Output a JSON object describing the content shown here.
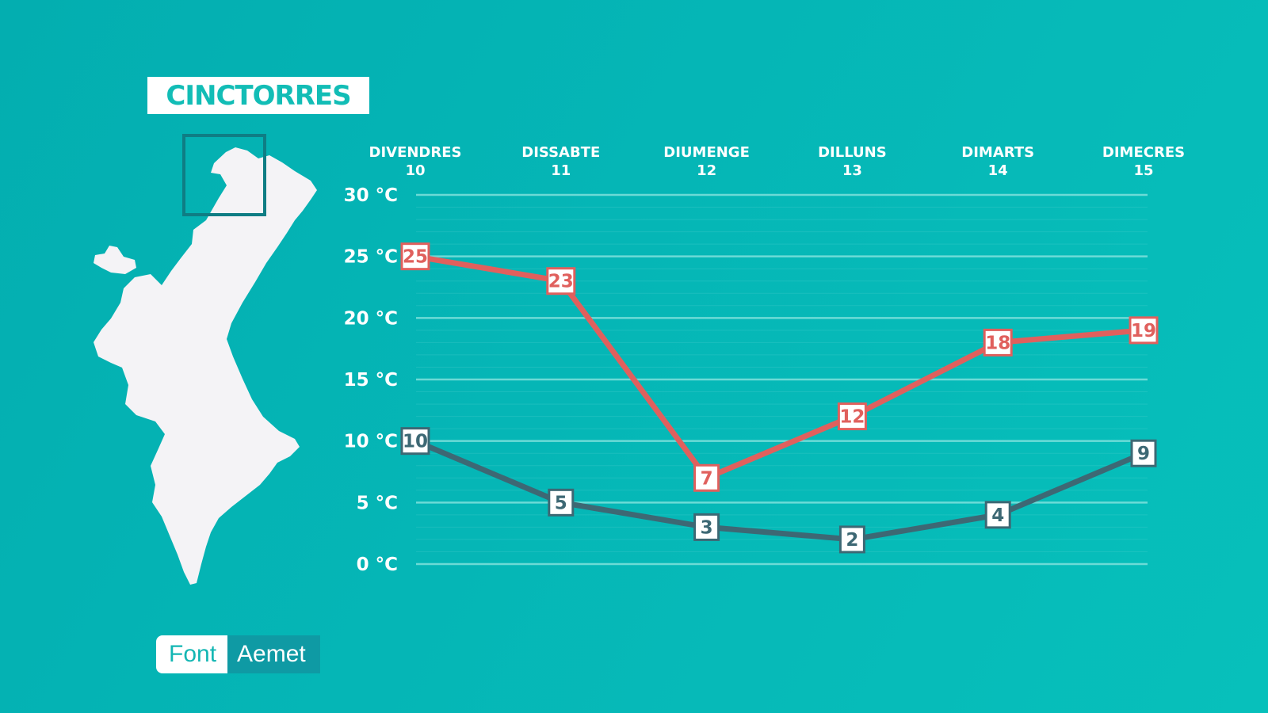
{
  "location": "CINCTORRES",
  "source": {
    "label": "Font",
    "value": "Aemet"
  },
  "colors": {
    "background": "#05b6b6",
    "max_series": "#e0605d",
    "min_series": "#3d6874",
    "grid": "#7fe0dc"
  },
  "icons": {
    "map": "valencian-community-map",
    "locator": "locator-square"
  },
  "chart_data": {
    "type": "line",
    "categories": [
      {
        "day": "DIVENDRES",
        "date": "10"
      },
      {
        "day": "DISSABTE",
        "date": "11"
      },
      {
        "day": "DIUMENGE",
        "date": "12"
      },
      {
        "day": "DILLUNS",
        "date": "13"
      },
      {
        "day": "DIMARTS",
        "date": "14"
      },
      {
        "day": "DIMECRES",
        "date": "15"
      }
    ],
    "series": [
      {
        "id": "max",
        "values": [
          25,
          23,
          7,
          12,
          18,
          19
        ]
      },
      {
        "id": "min",
        "values": [
          10,
          5,
          3,
          2,
          4,
          9
        ]
      }
    ],
    "yticks": [
      "30 °C",
      "25 °C",
      "20 °C",
      "15 °C",
      "10 °C",
      "5 °C",
      "0 °C"
    ],
    "ytick_values": [
      30,
      25,
      20,
      15,
      10,
      5,
      0
    ],
    "ylim": [
      0,
      30
    ],
    "unit": "°C",
    "grid": true,
    "data_labels": true
  }
}
